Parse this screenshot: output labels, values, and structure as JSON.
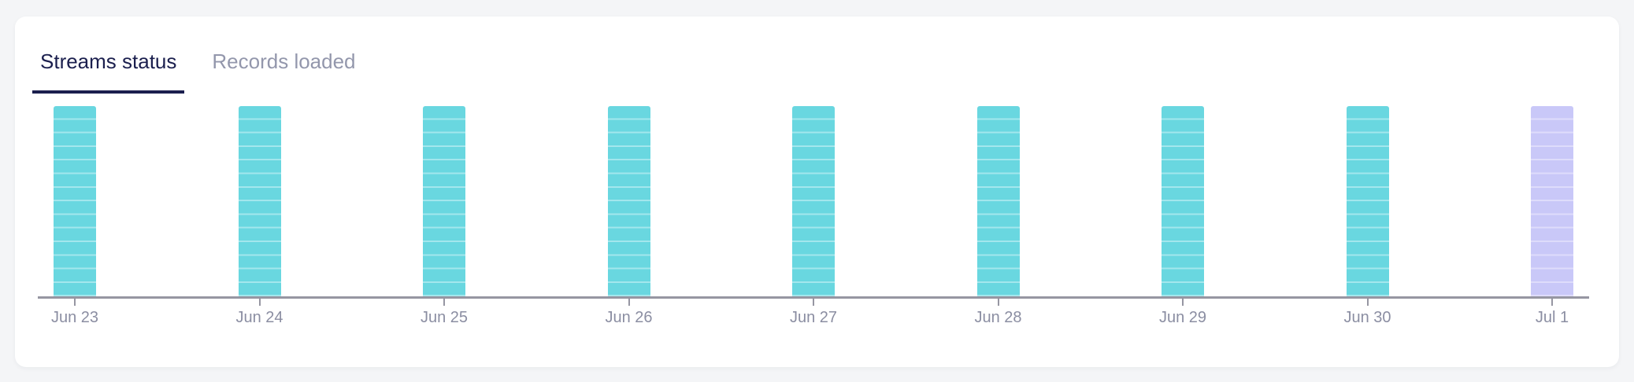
{
  "page": {
    "background_color": "#f4f5f7"
  },
  "card": {
    "background_color": "#ffffff"
  },
  "tabs": [
    {
      "label": "Streams status",
      "active": true
    },
    {
      "label": "Records loaded",
      "active": false
    }
  ],
  "tab_colors": {
    "active_text": "#1b1f4e",
    "active_underline": "#1b1f4e",
    "inactive_text": "#9397ac"
  },
  "chart_data": {
    "type": "bar",
    "title": "",
    "xlabel": "",
    "ylabel": "",
    "categories": [
      "Jun 23",
      "Jun 24",
      "Jun 25",
      "Jun 26",
      "Jun 27",
      "Jun 28",
      "Jun 29",
      "Jun 30",
      "Jul 1"
    ],
    "values": [
      14,
      14,
      14,
      14,
      14,
      14,
      14,
      14,
      14
    ],
    "value_unit": "stripe_segments",
    "ylim": [
      0,
      14
    ],
    "grid": false,
    "legend": "none",
    "y_axis_visible": false,
    "statuses": [
      "success",
      "success",
      "success",
      "success",
      "success",
      "success",
      "success",
      "success",
      "pending"
    ],
    "status_colors": {
      "success": {
        "fill": "#69d7e0",
        "stripe": "#a3e7ed"
      },
      "pending": {
        "fill": "#c9c8f8",
        "stripe": "#dedcfb"
      }
    },
    "axis_color": "#9696a2",
    "tick_label_color": "#8b8ea2"
  }
}
